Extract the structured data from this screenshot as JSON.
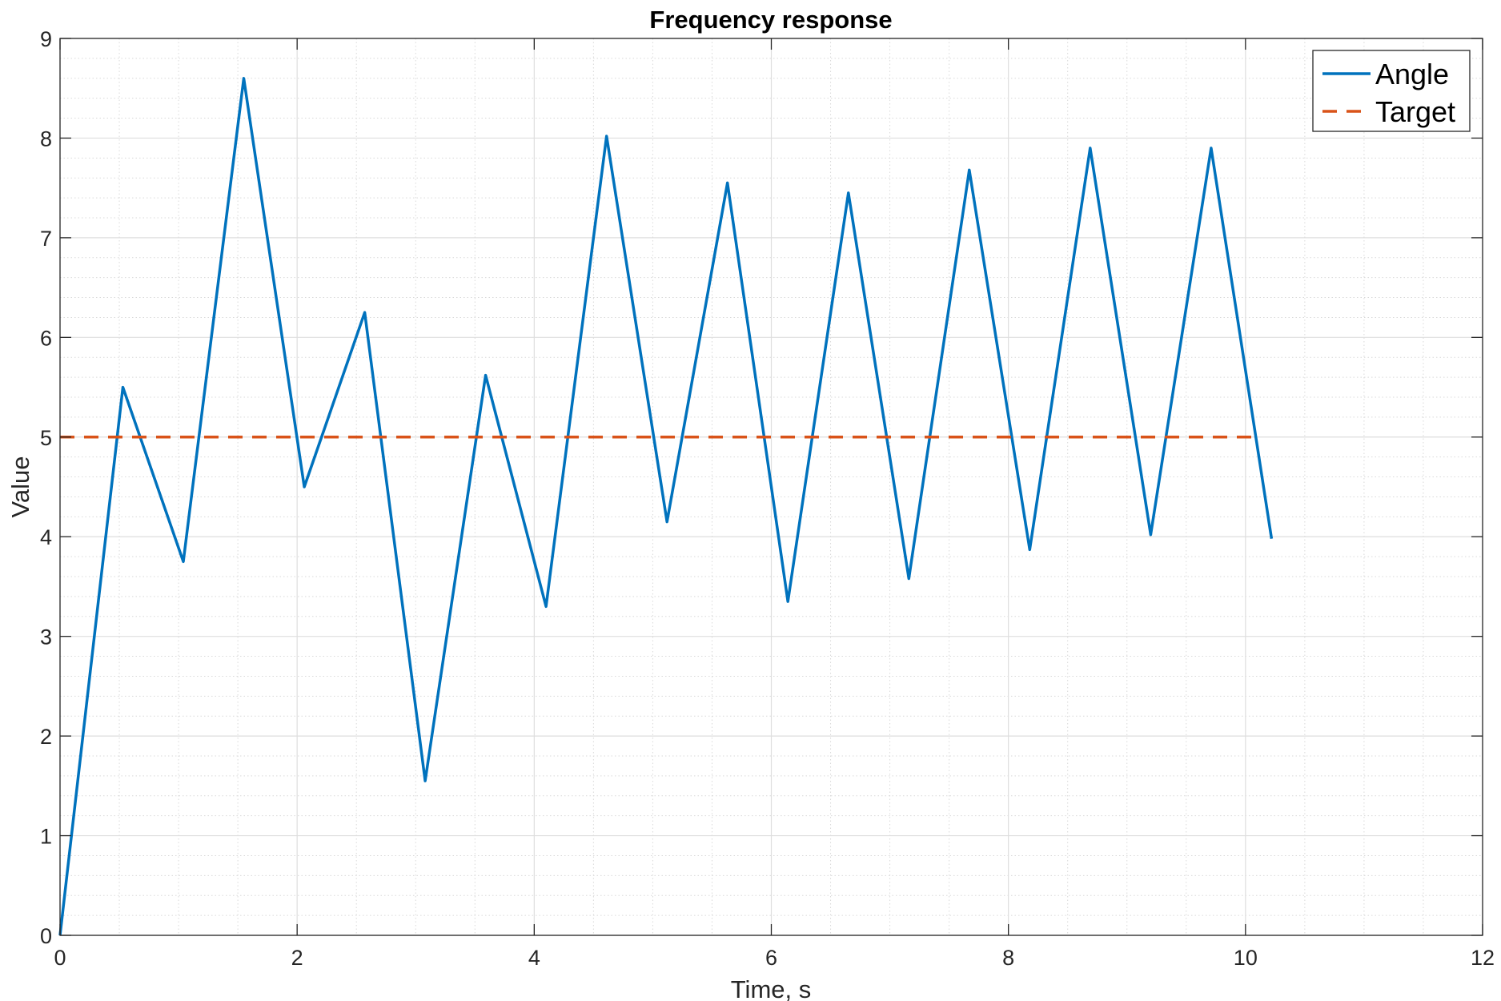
{
  "chart_data": {
    "type": "line",
    "title": "Frequency response",
    "xlabel": "Time, s",
    "ylabel": "Value",
    "xlim": [
      0,
      12
    ],
    "ylim": [
      0,
      9
    ],
    "x_ticks": [
      "0",
      "2",
      "4",
      "6",
      "8",
      "10",
      "12"
    ],
    "y_ticks": [
      "0",
      "1",
      "2",
      "3",
      "4",
      "5",
      "6",
      "7",
      "8",
      "9"
    ],
    "grid": true,
    "minor_grid": true,
    "legend_position": "top-right",
    "series": [
      {
        "name": "Angle",
        "color": "#0072BD",
        "style": "solid",
        "x": [
          0,
          0.53,
          1.04,
          1.55,
          2.06,
          2.57,
          3.08,
          3.59,
          4.1,
          4.61,
          5.12,
          5.63,
          6.14,
          6.65,
          7.16,
          7.67,
          8.18,
          8.69,
          9.2,
          9.71,
          10.22
        ],
        "y": [
          0,
          5.5,
          3.75,
          8.6,
          4.5,
          6.25,
          1.55,
          5.62,
          3.3,
          8.02,
          4.15,
          7.55,
          3.35,
          7.45,
          3.58,
          7.68,
          3.87,
          7.9,
          4.02,
          7.9,
          3.98
        ]
      },
      {
        "name": "Target",
        "color": "#D95319",
        "style": "dashed",
        "x": [
          0,
          10.1
        ],
        "y": [
          5,
          5
        ]
      }
    ]
  }
}
